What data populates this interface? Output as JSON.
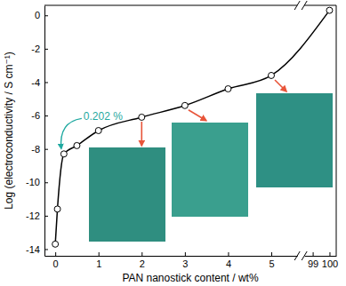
{
  "chart_data": {
    "type": "line",
    "x_label": "PAN nanostick content / wt%",
    "y_label": "Log (electroconductivity / S cm⁻¹)",
    "x": [
      0,
      0.05,
      0.2,
      0.5,
      1,
      2,
      3,
      4,
      5,
      100
    ],
    "values": [
      -13.7,
      -11.6,
      -8.3,
      -7.8,
      -6.9,
      -6.1,
      -5.4,
      -4.4,
      -3.6,
      0.3
    ],
    "color": "#000000",
    "marker": "circle",
    "xlim": [
      [
        -0.25,
        5.6
      ],
      [
        98.5,
        100.4
      ]
    ],
    "xticks": [
      0,
      1,
      2,
      3,
      4,
      5,
      99,
      100
    ],
    "ylim": [
      -14.4,
      0.6
    ],
    "yticks": [
      -14,
      -12,
      -10,
      -8,
      -6,
      -4,
      -2,
      0
    ],
    "annotations": [
      {
        "text": "0.202 %",
        "x": 0.2,
        "y": -8.3
      }
    ]
  }
}
